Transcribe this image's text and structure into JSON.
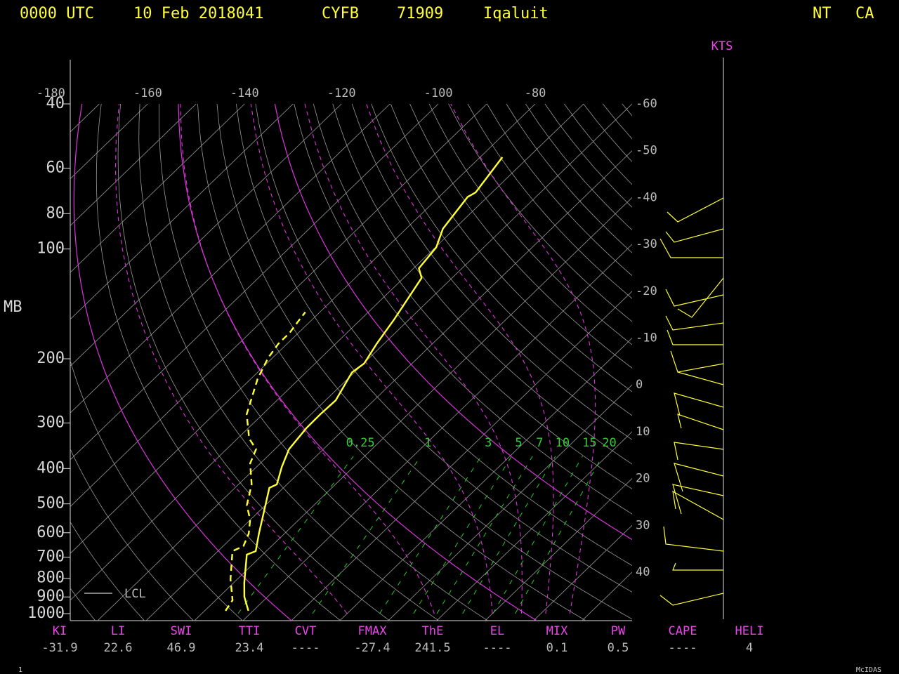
{
  "header": {
    "time": "0000 UTC",
    "date": "10 Feb 2018041",
    "station": "CYFB",
    "id": "71909",
    "name": "Iqaluit",
    "region": "NT",
    "country": "CA"
  },
  "chart_data": {
    "type": "skewt",
    "y_label": "MB",
    "wind_label": "KTS",
    "log_y": true,
    "ylim": [
      1000,
      40
    ],
    "yticks": [
      40,
      60,
      80,
      100,
      200,
      300,
      400,
      500,
      600,
      700,
      800,
      900,
      1000
    ],
    "xlim": [
      -176,
      -60
    ],
    "xticks": [
      -180,
      -160,
      -140,
      -120,
      -100,
      -80
    ],
    "right_ticks": [
      -60,
      -50,
      -40,
      -30,
      -20,
      -10,
      0,
      10,
      20,
      30,
      40
    ],
    "mixing_ratios": [
      0.25,
      1,
      3,
      5,
      7,
      10,
      15,
      20
    ],
    "legend": "LCL",
    "series": [
      {
        "color": "#ffff33",
        "style": "solid",
        "pressure": [
          982,
          899,
          823,
          689,
          674,
          603,
          540,
          452,
          442,
          396,
          354,
          310,
          284,
          260,
          218,
          206,
          182,
          156,
          120,
          113,
          99,
          88,
          72,
          70,
          56
        ],
        "values": [
          -31.0,
          -34.8,
          -37.8,
          -43.3,
          -42.2,
          -45.3,
          -48.2,
          -52.9,
          -52.1,
          -54.8,
          -57.1,
          -58.0,
          -58.1,
          -57.9,
          -60.5,
          -59.9,
          -61.5,
          -63.1,
          -66.3,
          -68.9,
          -69.8,
          -72.4,
          -74.1,
          -73.4,
          -75.4
        ]
      },
      {
        "color": "#ffff33",
        "style": "dashed",
        "pressure": [
          982,
          919,
          805,
          674,
          653,
          603,
          552,
          505,
          442,
          387,
          354,
          331,
          284,
          227,
          199,
          182,
          170,
          158,
          149
        ],
        "values": [
          -35.7,
          -36.5,
          -41.4,
          -47.0,
          -45.8,
          -47.4,
          -50.1,
          -53.8,
          -57.3,
          -62.1,
          -63.9,
          -67.6,
          -73.3,
          -78.6,
          -80.9,
          -81.8,
          -81.8,
          -82.5,
          -83.0
        ]
      }
    ]
  },
  "indices": [
    {
      "name": "KI",
      "value": "-31.9"
    },
    {
      "name": "LI",
      "value": "22.6"
    },
    {
      "name": "SWI",
      "value": "46.9"
    },
    {
      "name": "TTI",
      "value": "23.4"
    },
    {
      "name": "CVT",
      "value": "----"
    },
    {
      "name": "FMAX",
      "value": "-27.4"
    },
    {
      "name": "ThE",
      "value": "241.5"
    },
    {
      "name": "EL",
      "value": "----"
    },
    {
      "name": "MIX",
      "value": "0.1"
    },
    {
      "name": "PW",
      "value": "0.5"
    },
    {
      "name": "CAPE",
      "value": "----"
    },
    {
      "name": "HELI",
      "value": "4"
    }
  ],
  "footer": {
    "left": "1",
    "right": "McIDAS"
  }
}
